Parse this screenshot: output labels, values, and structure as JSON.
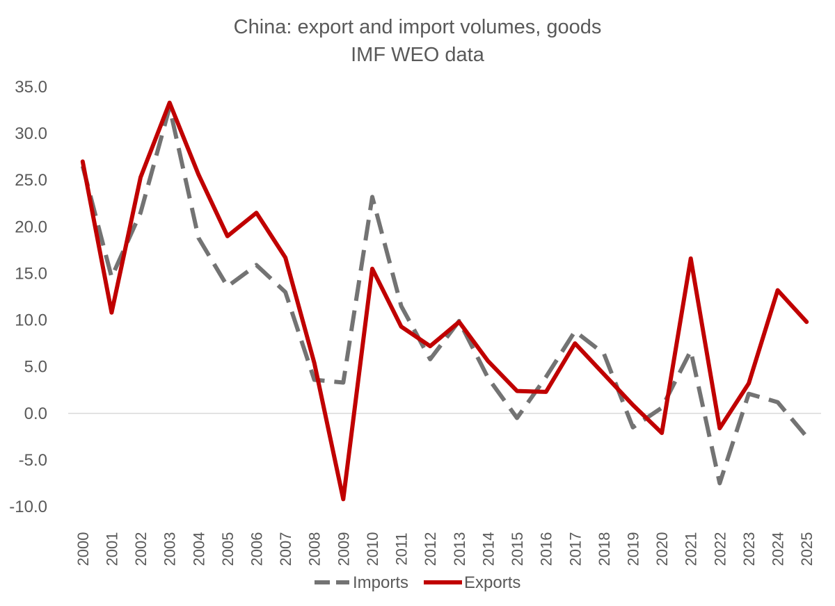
{
  "chart_data": {
    "type": "line",
    "title": "China: export and import volumes, goods",
    "subtitle": "IMF WEO data",
    "xlabel": "",
    "ylabel": "",
    "ylim": [
      -10,
      35
    ],
    "y_ticks": [
      "35.0",
      "30.0",
      "25.0",
      "20.0",
      "15.0",
      "10.0",
      "5.0",
      "0.0",
      "-5.0",
      "-10.0"
    ],
    "categories": [
      "2000",
      "2001",
      "2002",
      "2003",
      "2004",
      "2005",
      "2006",
      "2007",
      "2008",
      "2009",
      "2010",
      "2011",
      "2012",
      "2013",
      "2014",
      "2015",
      "2016",
      "2017",
      "2018",
      "2019",
      "2020",
      "2021",
      "2022",
      "2023",
      "2024",
      "2025"
    ],
    "grid": false,
    "legend_position": "bottom",
    "series": [
      {
        "name": "Imports",
        "color": "#737373",
        "style": "dashed",
        "values": [
          26.5,
          14.6,
          21.5,
          32.8,
          18.8,
          13.6,
          15.9,
          13.0,
          3.6,
          3.3,
          23.2,
          11.5,
          5.8,
          9.9,
          3.8,
          -0.5,
          3.9,
          8.8,
          6.4,
          -1.5,
          0.6,
          6.7,
          -7.5,
          2.1,
          1.2,
          -2.5
        ]
      },
      {
        "name": "Exports",
        "color": "#c00000",
        "style": "solid",
        "values": [
          27.0,
          10.8,
          25.3,
          33.3,
          25.6,
          19.0,
          21.5,
          16.7,
          5.4,
          -9.2,
          15.5,
          9.3,
          7.2,
          9.8,
          5.6,
          2.4,
          2.3,
          7.5,
          4.2,
          0.9,
          -2.1,
          16.6,
          -1.6,
          3.2,
          13.2,
          9.8
        ]
      }
    ]
  }
}
